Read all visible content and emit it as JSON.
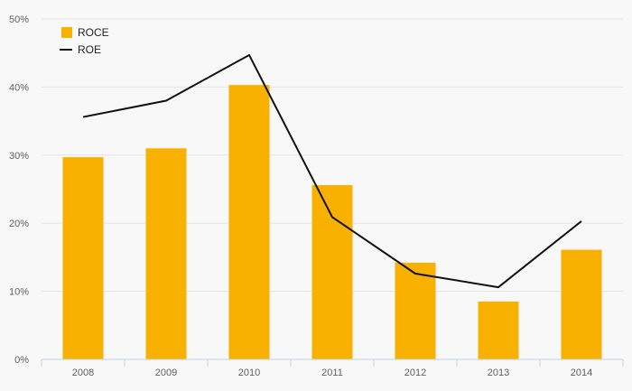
{
  "chart_data": {
    "type": "bar",
    "categories": [
      "2008",
      "2009",
      "2010",
      "2011",
      "2012",
      "2013",
      "2014"
    ],
    "series": [
      {
        "name": "ROCE",
        "type": "bar",
        "color": "#f8b100",
        "values": [
          29.7,
          31.0,
          40.3,
          25.6,
          14.2,
          8.5,
          16.1
        ]
      },
      {
        "name": "ROE",
        "type": "line",
        "color": "#111111",
        "values": [
          35.6,
          38.0,
          44.7,
          20.9,
          12.6,
          10.6,
          20.3
        ]
      }
    ],
    "ylim": [
      0,
      50
    ],
    "yticks": [
      "0%",
      "10%",
      "20%",
      "30%",
      "40%",
      "50%"
    ],
    "grid": true,
    "legend": "top-left"
  }
}
